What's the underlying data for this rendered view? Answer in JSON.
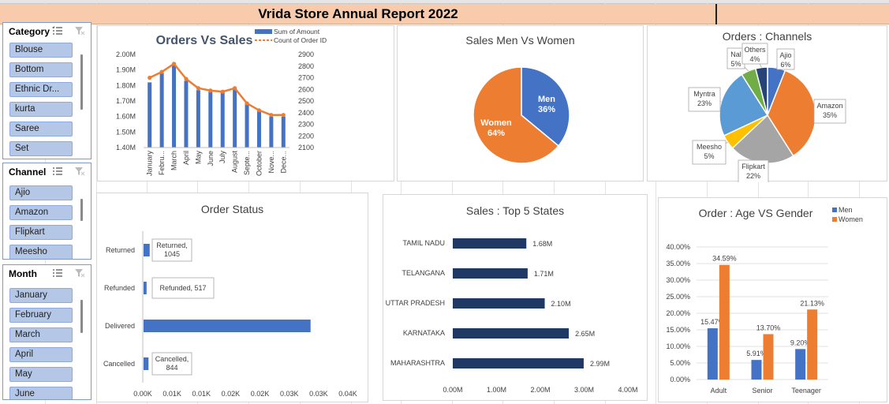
{
  "report_title": "Vrida Store Annual Report 2022",
  "slicers": {
    "category": {
      "title": "Category",
      "items": [
        "Blouse",
        "Bottom",
        "Ethnic Dr...",
        "kurta",
        "Saree",
        "Set"
      ]
    },
    "channel": {
      "title": "Channel",
      "items": [
        "Ajio",
        "Amazon",
        "Flipkart",
        "Meesho"
      ]
    },
    "month": {
      "title": "Month",
      "items": [
        "January",
        "February",
        "March",
        "April",
        "May",
        "June"
      ]
    }
  },
  "chart_data": [
    {
      "id": "orders_vs_sales",
      "type": "bar",
      "title": "Orders Vs Sales",
      "categories": [
        "January",
        "Febru...",
        "March",
        "April",
        "May",
        "June",
        "July",
        "August",
        "Septe...",
        "October",
        "Nove...",
        "Dece..."
      ],
      "series": [
        {
          "name": "Sum of Amount",
          "type": "bar",
          "axis": "left",
          "values": [
            1.82,
            1.88,
            1.93,
            1.83,
            1.77,
            1.76,
            1.76,
            1.78,
            1.69,
            1.64,
            1.6,
            1.6
          ]
        },
        {
          "name": "Count of Order ID",
          "type": "line",
          "axis": "right",
          "values": [
            2700,
            2750,
            2820,
            2690,
            2610,
            2590,
            2580,
            2610,
            2480,
            2420,
            2380,
            2380
          ]
        }
      ],
      "y_left": {
        "min": 1.4,
        "max": 2.0,
        "ticks": [
          "1.40M",
          "1.50M",
          "1.60M",
          "1.70M",
          "1.80M",
          "1.90M",
          "2.00M"
        ]
      },
      "y_right": {
        "min": 2100,
        "max": 2900,
        "ticks": [
          "2100",
          "2200",
          "2300",
          "2400",
          "2500",
          "2600",
          "2700",
          "2800",
          "2900"
        ]
      },
      "colors": {
        "bar": "#4472c4",
        "line": "#ed7d31"
      }
    },
    {
      "id": "sales_men_women",
      "type": "pie",
      "title": "Sales Men Vs Women",
      "slices": [
        {
          "label": "Men",
          "value": 36,
          "text": "36%",
          "color": "#4472c4"
        },
        {
          "label": "Women",
          "value": 64,
          "text": "64%",
          "color": "#ed7d31"
        }
      ]
    },
    {
      "id": "orders_channels",
      "type": "pie",
      "title": "Orders : Channels",
      "slices": [
        {
          "label": "Ajio",
          "value": 6,
          "text": "6%",
          "color": "#4472c4"
        },
        {
          "label": "Amazon",
          "value": 35,
          "text": "35%",
          "color": "#ed7d31"
        },
        {
          "label": "Flipkart",
          "value": 22,
          "text": "22%",
          "color": "#a5a5a5"
        },
        {
          "label": "Meesho",
          "value": 5,
          "text": "5%",
          "color": "#ffc000"
        },
        {
          "label": "Myntra",
          "value": 23,
          "text": "23%",
          "color": "#5b9bd5"
        },
        {
          "label": "Nal",
          "value": 5,
          "text": "5%",
          "color": "#70ad47"
        },
        {
          "label": "Others",
          "value": 4,
          "text": "4%",
          "color": "#264478"
        }
      ]
    },
    {
      "id": "order_status",
      "type": "bar",
      "orientation": "horizontal",
      "title": "Order Status",
      "categories": [
        "Returned",
        "Refunded",
        "Delivered",
        "Cancelled"
      ],
      "values": [
        1045,
        517,
        28500,
        844
      ],
      "data_labels": [
        "Returned,\n1045",
        "Refunded, 517",
        "",
        "Cancelled,\n844"
      ],
      "x_ticks": [
        "0.00K",
        "0.01K",
        "0.01K",
        "0.02K",
        "0.02K",
        "0.03K",
        "0.03K",
        "0.04K"
      ],
      "xlim": [
        0,
        35000
      ],
      "color": "#4472c4"
    },
    {
      "id": "sales_top5_states",
      "type": "bar",
      "orientation": "horizontal",
      "title": "Sales : Top 5 States",
      "categories": [
        "TAMIL NADU",
        "TELANGANA",
        "UTTAR PRADESH",
        "KARNATAKA",
        "MAHARASHTRA"
      ],
      "values": [
        1.68,
        1.71,
        2.1,
        2.65,
        2.99
      ],
      "data_labels": [
        "1.68M",
        "1.71M",
        "2.10M",
        "2.65M",
        "2.99M"
      ],
      "x_ticks": [
        "0.00M",
        "1.00M",
        "2.00M",
        "3.00M",
        "4.00M"
      ],
      "xlim": [
        0,
        4
      ],
      "color": "#203864"
    },
    {
      "id": "age_vs_gender",
      "type": "bar",
      "title": "Order : Age VS Gender",
      "categories": [
        "Adult",
        "Senior",
        "Teenager"
      ],
      "series": [
        {
          "name": "Men",
          "values": [
            15.47,
            5.91,
            9.2
          ],
          "labels": [
            "15.47%",
            "5.91%",
            "9.20%"
          ],
          "color": "#4472c4"
        },
        {
          "name": "Women",
          "values": [
            34.59,
            13.7,
            21.13
          ],
          "labels": [
            "34.59%",
            "13.70%",
            "21.13%"
          ],
          "color": "#ed7d31"
        }
      ],
      "y_ticks": [
        "0.00%",
        "5.00%",
        "10.00%",
        "15.00%",
        "20.00%",
        "25.00%",
        "30.00%",
        "35.00%",
        "40.00%"
      ],
      "ylim": [
        0,
        40
      ]
    }
  ]
}
